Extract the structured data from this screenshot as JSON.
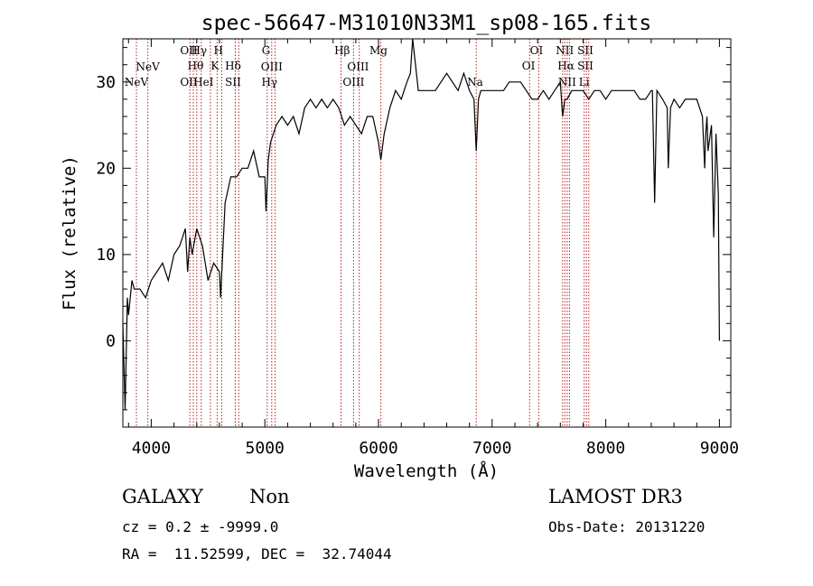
{
  "chart_data": {
    "type": "line",
    "title": "spec-56647-M31010N33M1_sp08-165.fits",
    "xlabel": "Wavelength (Å)",
    "ylabel": "Flux (relative)",
    "xlim": [
      3750,
      9100
    ],
    "ylim": [
      -10,
      35
    ],
    "xticks": [
      4000,
      5000,
      6000,
      7000,
      8000,
      9000
    ],
    "yticks": [
      0,
      10,
      20,
      30
    ],
    "series": [
      {
        "name": "flux",
        "x": [
          3750,
          3770,
          3790,
          3800,
          3830,
          3850,
          3900,
          3950,
          4000,
          4050,
          4100,
          4150,
          4200,
          4250,
          4300,
          4320,
          4340,
          4360,
          4400,
          4450,
          4500,
          4550,
          4600,
          4610,
          4650,
          4700,
          4750,
          4800,
          4850,
          4900,
          4950,
          5000,
          5010,
          5030,
          5050,
          5100,
          5150,
          5200,
          5250,
          5300,
          5350,
          5400,
          5450,
          5500,
          5550,
          5600,
          5650,
          5700,
          5750,
          5800,
          5850,
          5900,
          5950,
          6000,
          6020,
          6050,
          6100,
          6150,
          6200,
          6250,
          6280,
          6300,
          6350,
          6400,
          6450,
          6500,
          6550,
          6600,
          6650,
          6700,
          6750,
          6800,
          6840,
          6860,
          6880,
          6900,
          6950,
          7000,
          7050,
          7100,
          7150,
          7200,
          7250,
          7300,
          7350,
          7400,
          7450,
          7500,
          7550,
          7600,
          7620,
          7640,
          7660,
          7700,
          7750,
          7800,
          7850,
          7900,
          7950,
          8000,
          8050,
          8100,
          8150,
          8200,
          8250,
          8300,
          8350,
          8400,
          8410,
          8430,
          8450,
          8500,
          8540,
          8550,
          8570,
          8600,
          8650,
          8700,
          8750,
          8800,
          8850,
          8870,
          8880,
          8890,
          8900,
          8930,
          8950,
          8970,
          8990,
          9000
        ],
        "y": [
          2,
          -8,
          5,
          3,
          7,
          6,
          6,
          5,
          7,
          8,
          9,
          7,
          10,
          11,
          13,
          8,
          12,
          10,
          13,
          11,
          7,
          9,
          8,
          5,
          16,
          19,
          19,
          20,
          20,
          22,
          19,
          19,
          15,
          21,
          23,
          25,
          26,
          25,
          26,
          24,
          27,
          28,
          27,
          28,
          27,
          28,
          27,
          25,
          26,
          25,
          24,
          26,
          26,
          23,
          21,
          24,
          27,
          29,
          28,
          30,
          31,
          36,
          29,
          29,
          29,
          29,
          30,
          31,
          30,
          29,
          31,
          29,
          28,
          22,
          28,
          29,
          29,
          29,
          29,
          29,
          30,
          30,
          30,
          29,
          28,
          28,
          29,
          28,
          29,
          30,
          26,
          28,
          28,
          29,
          29,
          29,
          28,
          29,
          29,
          28,
          29,
          29,
          29,
          29,
          29,
          28,
          28,
          29,
          29,
          16,
          29,
          28,
          27,
          20,
          27,
          28,
          27,
          28,
          28,
          28,
          26,
          20,
          24,
          26,
          22,
          25,
          12,
          24,
          17,
          0
        ]
      }
    ],
    "emission_lines": [
      {
        "label": "NeV",
        "x": 3869,
        "row": 4
      },
      {
        "label": "NeV",
        "x": 3970,
        "row": 2
      },
      {
        "label": "OII",
        "x": 4330,
        "row": 1
      },
      {
        "label": "OII",
        "x": 4330,
        "row": 4
      },
      {
        "label": "Hγ",
        "x": 4420,
        "row": 1
      },
      {
        "label": "Hθ",
        "x": 4390,
        "row": 3
      },
      {
        "label": "HeI",
        "x": 4460,
        "row": 4
      },
      {
        "label": "H",
        "x": 4590,
        "row": 1
      },
      {
        "label": "K",
        "x": 4560,
        "row": 3
      },
      {
        "label": "Hδ",
        "x": 4720,
        "row": 3
      },
      {
        "label": "SII",
        "x": 4720,
        "row": 4
      },
      {
        "label": "G",
        "x": 5010,
        "row": 1
      },
      {
        "label": "OIII",
        "x": 5060,
        "row": 2
      },
      {
        "label": "Hγ",
        "x": 5040,
        "row": 4
      },
      {
        "label": "Hβ",
        "x": 5680,
        "row": 1
      },
      {
        "label": "OIII",
        "x": 5820,
        "row": 2
      },
      {
        "label": "OIII",
        "x": 5780,
        "row": 4
      },
      {
        "label": "Mg",
        "x": 6000,
        "row": 1
      },
      {
        "label": "Na",
        "x": 6850,
        "row": 4
      },
      {
        "label": "OI",
        "x": 7390,
        "row": 1
      },
      {
        "label": "OI",
        "x": 7320,
        "row": 3
      },
      {
        "label": "NII",
        "x": 7640,
        "row": 1
      },
      {
        "label": "Hα",
        "x": 7650,
        "row": 3
      },
      {
        "label": "NII",
        "x": 7660,
        "row": 4
      },
      {
        "label": "SII",
        "x": 7820,
        "row": 1
      },
      {
        "label": "SII",
        "x": 7820,
        "row": 3
      },
      {
        "label": "Li",
        "x": 7810,
        "row": 4
      }
    ],
    "line_markers": [
      3869,
      3970,
      4340,
      4370,
      4400,
      4440,
      4520,
      4580,
      4620,
      4740,
      4770,
      5020,
      5060,
      5090,
      5670,
      5780,
      5830,
      6020,
      6860,
      7330,
      7410,
      7620,
      7640,
      7660,
      7680,
      7810,
      7830,
      7850
    ]
  },
  "info": {
    "class": "GALAXY",
    "subclass": "Non",
    "survey": "LAMOST DR3",
    "cz": "cz = 0.2 ± -9999.0",
    "obs_date": "Obs-Date: 20131220",
    "coords": "RA =  11.52599, DEC =  32.74044"
  }
}
